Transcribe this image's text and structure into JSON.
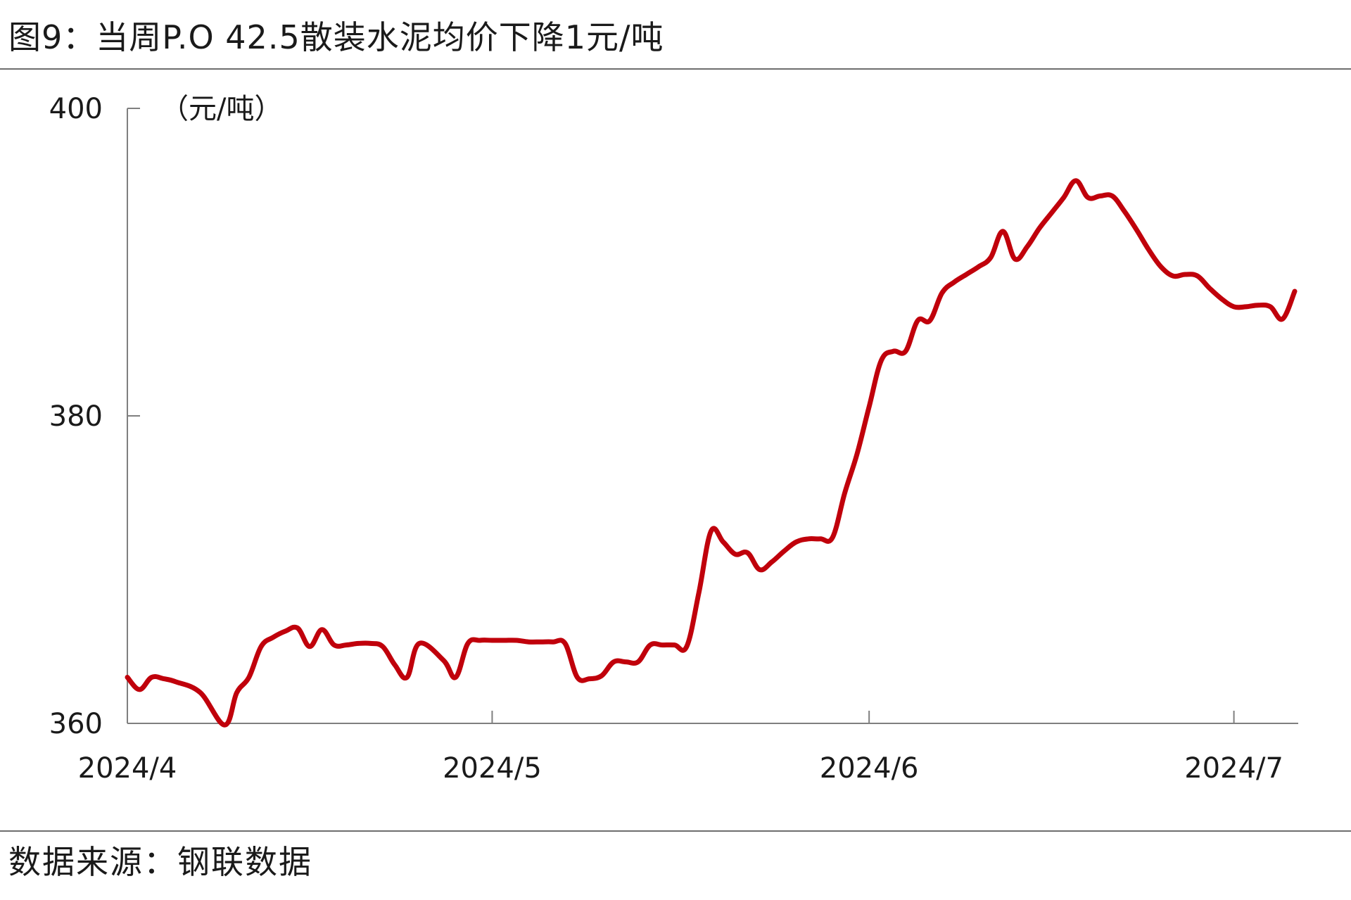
{
  "title": "图9：当周P.O 42.5散装水泥均价下降1元/吨",
  "source": "数据来源：钢联数据",
  "colors": {
    "line": "#c0000b",
    "axis": "#7f7f7f",
    "rule": "#6e6e6e"
  },
  "chart_data": {
    "type": "line",
    "title": "图9：当周P.O 42.5散装水泥均价下降1元/吨",
    "xlabel": "",
    "ylabel": "（元/吨）",
    "x_tick_labels": [
      "2024/4",
      "2024/5",
      "2024/6",
      "2024/7"
    ],
    "x_tick_positions": [
      0,
      30,
      61,
      91
    ],
    "xlim": [
      0,
      96
    ],
    "ylim": [
      360,
      400
    ],
    "y_ticks": [
      360,
      380,
      400
    ],
    "grid": false,
    "legend": "none",
    "series": [
      {
        "name": "",
        "x": [
          0,
          1,
          2,
          3,
          4,
          6,
          8,
          9,
          10,
          11,
          12,
          13,
          14,
          15,
          16,
          17,
          18,
          19,
          20,
          21,
          22,
          23,
          24,
          26,
          27,
          28,
          29,
          30,
          31,
          32,
          33,
          34,
          35,
          36,
          37,
          38,
          39,
          40,
          41,
          42,
          43,
          44,
          45,
          46,
          47,
          48,
          49,
          50,
          51,
          52,
          53,
          54,
          55,
          56,
          57,
          58,
          59,
          60,
          61,
          62,
          63,
          64,
          65,
          66,
          67,
          68,
          69,
          70,
          71,
          72,
          73,
          74,
          75,
          76,
          77,
          78,
          79,
          80,
          81,
          82,
          83,
          84,
          85,
          86,
          87,
          88,
          89,
          90,
          91,
          92,
          93,
          94,
          95,
          96
        ],
        "y": [
          363,
          362.2,
          363,
          362.9,
          362.7,
          362,
          359.9,
          362,
          363,
          365,
          365.6,
          366,
          366.2,
          365,
          366.1,
          365.1,
          365.1,
          365.2,
          365.2,
          365,
          363.8,
          363,
          365.2,
          364.1,
          363,
          365.2,
          365.4,
          365.4,
          365.4,
          365.4,
          365.3,
          365.3,
          365.3,
          365.2,
          363,
          362.9,
          363.1,
          364,
          364,
          364,
          365.1,
          365.1,
          365.1,
          365,
          368.5,
          372.5,
          371.8,
          371,
          371.1,
          370,
          370.5,
          371.2,
          371.8,
          372,
          372,
          372.1,
          375,
          377.5,
          380.6,
          383.6,
          384.2,
          384.2,
          386.2,
          386.2,
          388,
          388.7,
          389.2,
          389.7,
          390.3,
          392,
          390.2,
          391,
          392.2,
          393.2,
          394.2,
          395.3,
          394.2,
          394.3,
          394.3,
          393.3,
          392.1,
          390.8,
          389.7,
          389.1,
          389.2,
          389.1,
          388.3,
          387.6,
          387.1,
          387.1,
          387.2,
          387.1,
          386.3,
          388.1
        ]
      }
    ]
  }
}
